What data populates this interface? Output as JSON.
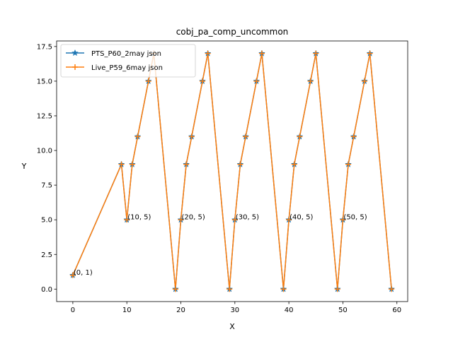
{
  "chart_data": {
    "type": "line",
    "title": "cobj_pa_comp_uncommon",
    "xlabel": "X",
    "ylabel": "Y",
    "xlim": [
      -3,
      62
    ],
    "ylim": [
      -0.9,
      17.9
    ],
    "xticks": [
      0,
      10,
      20,
      30,
      40,
      50,
      60
    ],
    "yticks": [
      0.0,
      2.5,
      5.0,
      7.5,
      10.0,
      12.5,
      15.0,
      17.5
    ],
    "xtick_labels": [
      "0",
      "10",
      "20",
      "30",
      "40",
      "50",
      "60"
    ],
    "ytick_labels": [
      "0.0",
      "2.5",
      "5.0",
      "7.5",
      "10.0",
      "12.5",
      "15.0",
      "17.5"
    ],
    "grid": false,
    "legend_position": "top-left",
    "series": [
      {
        "name": "PTS_P60_2may json",
        "color": "#1f77b4",
        "marker": "star",
        "x": [
          0,
          9,
          10,
          11,
          12,
          14,
          15,
          19,
          20,
          21,
          22,
          24,
          25,
          29,
          30,
          31,
          32,
          34,
          35,
          39,
          40,
          41,
          42,
          44,
          45,
          49,
          50,
          51,
          52,
          54,
          55,
          59
        ],
        "y": [
          1,
          9,
          5,
          9,
          11,
          15,
          17,
          0,
          5,
          9,
          11,
          15,
          17,
          0,
          5,
          9,
          11,
          15,
          17,
          0,
          5,
          9,
          11,
          15,
          17,
          0,
          5,
          9,
          11,
          15,
          17,
          0
        ]
      },
      {
        "name": "Live_P59_6may json",
        "color": "#ff7f0e",
        "marker": "plus",
        "x": [
          0,
          9,
          10,
          11,
          12,
          14,
          15,
          19,
          20,
          21,
          22,
          24,
          25,
          29,
          30,
          31,
          32,
          34,
          35,
          39,
          40,
          41,
          42,
          44,
          45,
          49,
          50,
          51,
          52,
          54,
          55,
          59
        ],
        "y": [
          1,
          9,
          5,
          9,
          11,
          15,
          17,
          0,
          5,
          9,
          11,
          15,
          17,
          0,
          5,
          9,
          11,
          15,
          17,
          0,
          5,
          9,
          11,
          15,
          17,
          0,
          5,
          9,
          11,
          15,
          17,
          0
        ]
      }
    ],
    "annotations": [
      {
        "text": "(0, 1)",
        "x": 0,
        "y": 1
      },
      {
        "text": "(10, 5)",
        "x": 10,
        "y": 5
      },
      {
        "text": "(20, 5)",
        "x": 20,
        "y": 5
      },
      {
        "text": "(30, 5)",
        "x": 30,
        "y": 5
      },
      {
        "text": "(40, 5)",
        "x": 40,
        "y": 5
      },
      {
        "text": "(50, 5)",
        "x": 50,
        "y": 5
      }
    ]
  }
}
